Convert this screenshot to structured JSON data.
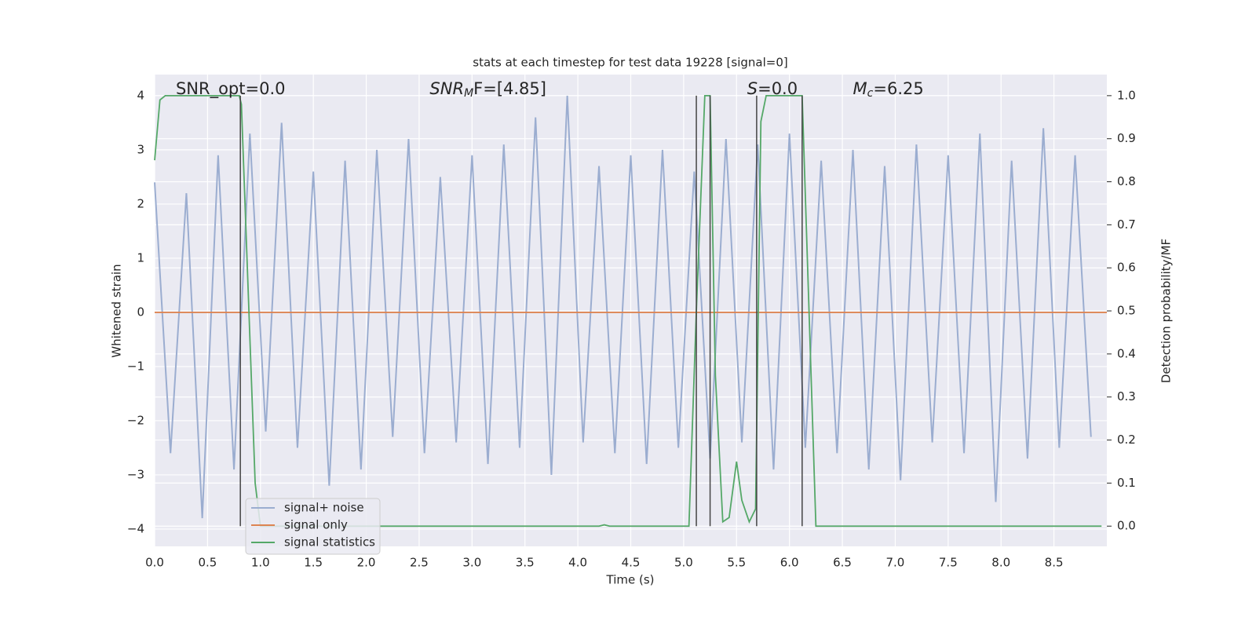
{
  "chart_data": {
    "type": "line",
    "title": "stats at each timestep for test data 19228 [signal=0]",
    "xlabel": "Time (s)",
    "ylabel": "Whitened strain",
    "y2label": "Detection probability/MF",
    "annotations": [
      {
        "symbol": "SNR_opt=0.0",
        "x": 0.2
      },
      {
        "symbol": "SNR",
        "sub": "M",
        "rest": "F=[4.85]",
        "x": 2.6
      },
      {
        "symbol": "S",
        "rest": "=0.0",
        "x": 5.6
      },
      {
        "symbol": "M",
        "sub": "c",
        "rest": "=6.25",
        "x": 6.6
      }
    ],
    "vlines": [
      0.81,
      5.12,
      5.25,
      5.69,
      6.12
    ],
    "xlim": [
      0,
      9.0
    ],
    "ylim": [
      -4.32,
      4.39
    ],
    "y2lim": [
      -0.047,
      1.049
    ],
    "xticks": [
      {
        "value": 0,
        "label": "0.0"
      },
      0.5,
      {
        "value": 1,
        "label": "1.0"
      },
      1.5,
      {
        "value": 2,
        "label": "2.0"
      },
      2.5,
      {
        "value": 3,
        "label": "3.0"
      },
      3.5,
      {
        "value": 4,
        "label": "4.0"
      },
      4.5,
      {
        "value": 5,
        "label": "5.0"
      },
      5.5,
      {
        "value": 6,
        "label": "6.0"
      },
      6.5,
      {
        "value": 7,
        "label": "7.0"
      },
      7.5,
      {
        "value": 8,
        "label": "8.0"
      },
      8.5
    ],
    "yticks": [
      {
        "value": -4,
        "label": "−4"
      },
      {
        "value": -3,
        "label": "−3"
      },
      {
        "value": -2,
        "label": "−2"
      },
      {
        "value": -1,
        "label": "−1"
      },
      0,
      1,
      2,
      3,
      4
    ],
    "y2ticks": [
      {
        "value": 0,
        "label": "0.0"
      },
      0.1,
      0.2,
      0.3,
      0.4,
      0.5,
      0.6,
      0.7,
      0.8,
      0.9,
      {
        "value": 1,
        "label": "1.0"
      }
    ],
    "grid": true,
    "series": [
      {
        "name": "signal+ noise",
        "color": "#9badd0",
        "x": [
          0,
          0.15,
          0.3,
          0.45,
          0.6,
          0.75,
          0.9,
          1.05,
          1.2,
          1.35,
          1.5,
          1.65,
          1.8,
          1.95,
          2.1,
          2.25,
          2.4,
          2.55,
          2.7,
          2.85,
          3.0,
          3.15,
          3.3,
          3.45,
          3.6,
          3.75,
          3.9,
          4.05,
          4.2,
          4.35,
          4.5,
          4.65,
          4.8,
          4.95,
          5.1,
          5.25,
          5.4,
          5.55,
          5.7,
          5.85,
          6.0,
          6.15,
          6.3,
          6.45,
          6.6,
          6.75,
          6.9,
          7.05,
          7.2,
          7.35,
          7.5,
          7.65,
          7.8,
          7.95,
          8.1,
          8.25,
          8.4,
          8.55,
          8.7,
          8.85
        ],
        "values": [
          2.4,
          -2.6,
          2.2,
          -3.8,
          2.9,
          -2.9,
          3.3,
          -2.2,
          3.5,
          -2.5,
          2.6,
          -3.2,
          2.8,
          -2.9,
          3.0,
          -2.3,
          3.2,
          -2.6,
          2.5,
          -2.4,
          2.9,
          -2.8,
          3.1,
          -2.5,
          3.6,
          -3.0,
          4.0,
          -2.4,
          2.7,
          -2.6,
          2.9,
          -2.8,
          3.0,
          -2.5,
          2.6,
          -2.7,
          3.2,
          -2.4,
          3.1,
          -2.9,
          3.3,
          -2.5,
          2.8,
          -2.6,
          3.0,
          -2.9,
          2.7,
          -3.1,
          3.1,
          -2.4,
          2.9,
          -2.6,
          3.3,
          -3.5,
          2.8,
          -2.7,
          3.4,
          -2.5,
          2.9,
          -2.3
        ]
      },
      {
        "name": "signal only",
        "color": "#dd8452",
        "x": [
          0,
          9.0
        ],
        "values": [
          0,
          0
        ]
      },
      {
        "name": "signal statistics",
        "color": "#55a868",
        "axis": "y2",
        "x": [
          0,
          0.05,
          0.1,
          0.8,
          0.82,
          0.95,
          1.0,
          4.2,
          4.25,
          4.3,
          5.05,
          5.12,
          5.2,
          5.25,
          5.3,
          5.37,
          5.43,
          5.5,
          5.55,
          5.62,
          5.68,
          5.73,
          5.78,
          6.12,
          6.25,
          8.95
        ],
        "values": [
          0.85,
          0.99,
          1.0,
          1.0,
          0.98,
          0.1,
          0.0,
          0.0,
          0.003,
          0.0,
          0.0,
          0.5,
          1.0,
          1.0,
          0.35,
          0.01,
          0.02,
          0.15,
          0.06,
          0.01,
          0.04,
          0.94,
          1.0,
          1.0,
          0.0,
          0.0
        ]
      }
    ]
  }
}
